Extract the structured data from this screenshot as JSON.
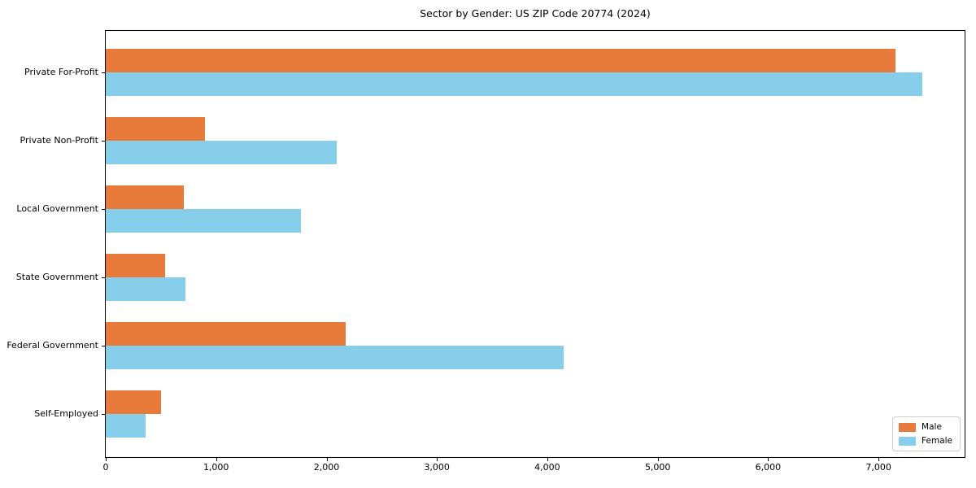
{
  "chart_data": {
    "type": "bar",
    "orientation": "horizontal",
    "title": "Sector by Gender: US ZIP Code 20774 (2024)",
    "categories": [
      "Private For-Profit",
      "Private Non-Profit",
      "Local Government",
      "State Government",
      "Federal Government",
      "Self-Employed"
    ],
    "series": [
      {
        "name": "Male",
        "color": "#e87a3c",
        "values": [
          7155,
          900,
          705,
          535,
          2170,
          500
        ]
      },
      {
        "name": "Female",
        "color": "#87ceeb",
        "values": [
          7400,
          2090,
          1770,
          720,
          4150,
          360
        ]
      }
    ],
    "xlabel": "",
    "ylabel": "",
    "xlim": [
      0,
      7780
    ],
    "xticks": {
      "values": [
        0,
        1000,
        2000,
        3000,
        4000,
        5000,
        6000,
        7000
      ],
      "labels": [
        "0",
        "1,000",
        "2,000",
        "3,000",
        "4,000",
        "5,000",
        "6,000",
        "7,000"
      ]
    },
    "grid": false,
    "legend": {
      "position": "lower right",
      "entries": [
        "Male",
        "Female"
      ]
    }
  }
}
